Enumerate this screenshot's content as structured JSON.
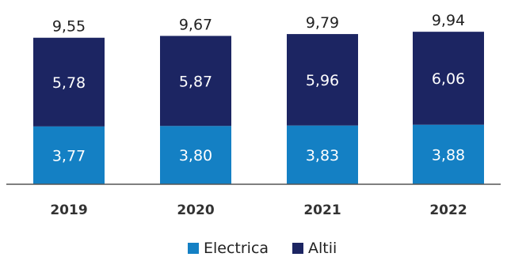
{
  "chart_data": {
    "type": "bar",
    "stacked": true,
    "categories": [
      "2019",
      "2020",
      "2021",
      "2022"
    ],
    "series": [
      {
        "name": "Electrica",
        "values": [
          3.77,
          3.8,
          3.83,
          3.88
        ],
        "color": "#1480C4",
        "labels": [
          "3,77",
          "3,80",
          "3,83",
          "3,88"
        ]
      },
      {
        "name": "Altii",
        "values": [
          5.78,
          5.87,
          5.96,
          6.06
        ],
        "color": "#1C2562",
        "labels": [
          "5,78",
          "5,87",
          "5,96",
          "6,06"
        ]
      }
    ],
    "totals": [
      9.55,
      9.67,
      9.79,
      9.94
    ],
    "total_labels": [
      "9,55",
      "9,67",
      "9,79",
      "9,94"
    ],
    "legend_position": "bottom-center",
    "grid": false
  }
}
